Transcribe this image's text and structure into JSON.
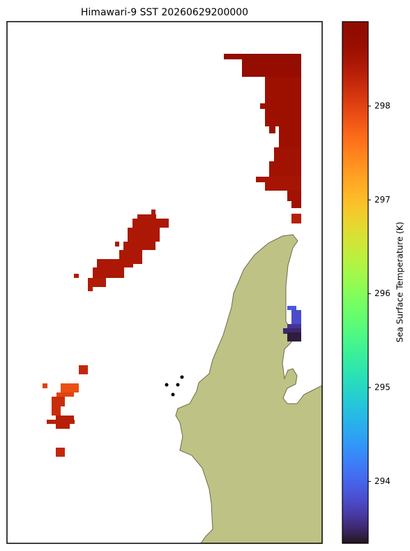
{
  "chart_data": {
    "type": "raster",
    "title": "Himawari-9 SST 20260629200000",
    "colorbar_label": "Sea Surface Temperature (K)",
    "colormap": "turbo",
    "clim": [
      293.34,
      298.9
    ],
    "cticks": [
      294,
      295,
      296,
      297,
      298
    ],
    "values": [
      298.75,
      298.7,
      298.6,
      298.6,
      298.6,
      298.6,
      298.6,
      298.6,
      298.55,
      298.55,
      298.5,
      298.5,
      298.35,
      298.55,
      298.55,
      298.45,
      298.45,
      298.45,
      298.45,
      298.45,
      298.45,
      298.45,
      298.45,
      298.4,
      298.4,
      298.45,
      298.4,
      298.25,
      297.9,
      298.0,
      298.0,
      298.2,
      298.2,
      298.35,
      298.35,
      298.35,
      298.25,
      293.9,
      293.8,
      293.6,
      293.5,
      293.4
    ]
  }
}
